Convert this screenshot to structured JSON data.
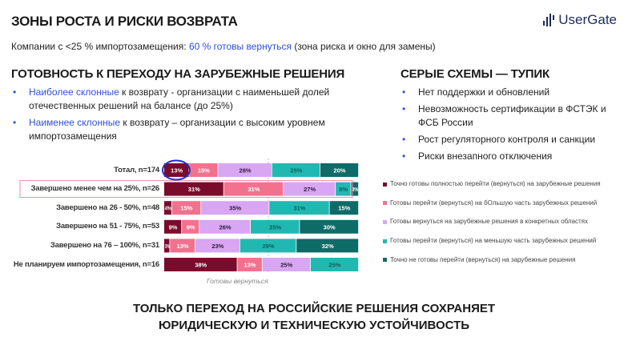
{
  "header": {
    "title": "ЗОНЫ РОСТА И РИСКИ ВОЗВРАТА",
    "logo": "UserGate",
    "subtitle_prefix": "Компании с <25 % импортозамещения: ",
    "subtitle_highlight": "60 % готовы вернуться",
    "subtitle_suffix": " (зона риска и окно для замены)"
  },
  "left": {
    "heading": "ГОТОВНОСТЬ К ПЕРЕХОДУ НА ЗАРУБЕЖНЫЕ РЕШЕНИЯ",
    "bullets": [
      {
        "highlight": "Наиболее склонные",
        "text": " к возврату - организации с наименьшей долей отечественных решений на балансе (до 25%)"
      },
      {
        "highlight": "Наименее склонные",
        "text": " к возврату – организации с высоким уровнем импортозамещения"
      }
    ]
  },
  "right": {
    "heading": "СЕРЫЕ СХЕМЫ — ТУПИК",
    "bullets": [
      "Нет поддержки и обновлений",
      "Невозможность сертификации в ФСТЭК и ФСБ России",
      "Рост регуляторного контроля и санкции",
      "Риски внезапного отключения"
    ]
  },
  "chart_data": {
    "type": "bar",
    "orientation": "horizontal",
    "stacked": true,
    "categories": [
      "Тотал, n=174",
      "Завершено менее чем на 25%, n=26",
      "Завершено на 26 - 50%, n=48",
      "Завершено на 51 - 75%, n=53",
      "Завершено на 76 – 100%, n=31",
      "Не планируем импортозамещения, n=16"
    ],
    "series": [
      {
        "name": "Точно готовы полностью перейти (вернуться) на зарубежные решения",
        "color": "#7a0b2c",
        "values": [
          13,
          31,
          4,
          9,
          3,
          38
        ]
      },
      {
        "name": "Готовы перейти (вернуться) на бОльшую часть зарубежных решений",
        "color": "#f2718f",
        "values": [
          15,
          31,
          15,
          9,
          13,
          13
        ]
      },
      {
        "name": "Готовы вернуться на зарубежные решения в конкретных областях",
        "color": "#d8a6f2",
        "values": [
          28,
          27,
          35,
          26,
          23,
          25
        ]
      },
      {
        "name": "Готовы перейти (вернуться) на меньшую часть зарубежных решений",
        "color": "#22b8b2",
        "values": [
          25,
          8,
          31,
          25,
          29,
          25
        ]
      },
      {
        "name": "Точно не готовы перейти (вернуться) на зарубежные решения",
        "color": "#0f6b68",
        "values": [
          20,
          4,
          15,
          30,
          32,
          0
        ]
      }
    ],
    "annotation": "Готовы вернуться",
    "highlighted_category": "Завершено менее чем на 25%, n=26",
    "circled_value": "13%",
    "legend_placement": "right"
  },
  "footer": {
    "line1": "ТОЛЬКО ПЕРЕХОД НА РОССИЙСКИЕ РЕШЕНИЯ СОХРАНЯЕТ",
    "line2": "ЮРИДИЧЕСКУЮ И ТЕХНИЧЕСКУЮ УСТОЙЧИВОСТЬ"
  }
}
